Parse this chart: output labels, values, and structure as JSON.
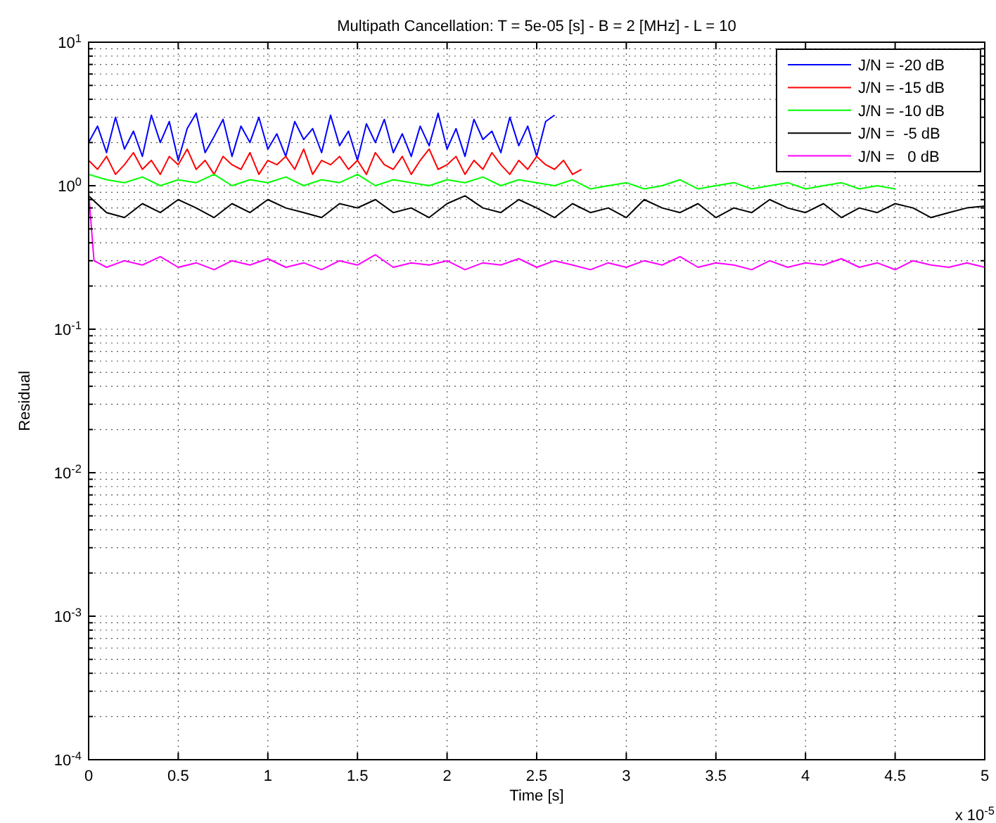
{
  "chart_data": {
    "type": "line",
    "title": "Multipath Cancellation: T = 5e-05 [s] - B = 2 [MHz] - L = 10",
    "xlabel": "Time [s]",
    "ylabel": "Residual",
    "annotations": [
      "x 10$^{-5}$"
    ],
    "xlim": [
      0,
      5
    ],
    "xticks": [
      0,
      0.5,
      1,
      1.5,
      2,
      2.5,
      3,
      3.5,
      4,
      4.5,
      5
    ],
    "ylim": [
      0.0001,
      10
    ],
    "log": "y",
    "yticks": [
      {
        "value": 0.0001,
        "label": "10$^{-4}$"
      },
      {
        "value": 0.001,
        "label": "10$^{-3}$"
      },
      {
        "value": 0.01,
        "label": "10$^{-2}$"
      },
      {
        "value": 0.1,
        "label": "10$^{-1}$"
      },
      {
        "value": 1,
        "label": "10$^{0}$"
      },
      {
        "value": 10,
        "label": "10$^{1}$"
      }
    ],
    "grid": true,
    "legend": "top right",
    "line_style": "solid",
    "marker": "none",
    "series": [
      {
        "name": "J/N = -20 dB",
        "color": "#0000ff",
        "x": [
          0,
          0.05,
          0.1,
          0.15,
          0.2,
          0.25,
          0.3,
          0.35,
          0.4,
          0.45,
          0.5,
          0.55,
          0.6,
          0.65,
          0.7,
          0.75,
          0.8,
          0.85,
          0.9,
          0.95,
          1,
          1.05,
          1.1,
          1.15,
          1.2,
          1.25,
          1.3,
          1.35,
          1.4,
          1.45,
          1.5,
          1.55,
          1.6,
          1.65,
          1.7,
          1.75,
          1.8,
          1.85,
          1.9,
          1.95,
          2,
          2.05,
          2.1,
          2.15,
          2.2,
          2.25,
          2.3,
          2.35,
          2.4,
          2.45,
          2.5,
          2.55,
          2.6
        ],
        "values": [
          2.0,
          2.6,
          1.7,
          3.0,
          1.8,
          2.4,
          1.6,
          3.1,
          2.0,
          2.8,
          1.5,
          2.5,
          3.2,
          1.7,
          2.2,
          2.9,
          1.6,
          2.6,
          2.0,
          3.0,
          1.8,
          2.3,
          1.6,
          2.8,
          2.1,
          2.5,
          1.7,
          3.1,
          1.9,
          2.4,
          1.5,
          2.7,
          2.0,
          2.9,
          1.7,
          2.3,
          1.6,
          2.6,
          1.9,
          3.2,
          1.8,
          2.5,
          1.6,
          2.9,
          2.1,
          2.4,
          1.7,
          3.0,
          1.9,
          2.6,
          1.6,
          2.8,
          3.1
        ]
      },
      {
        "name": "J/N = -15 dB",
        "color": "#ff0000",
        "x": [
          0,
          0.05,
          0.1,
          0.15,
          0.2,
          0.25,
          0.3,
          0.35,
          0.4,
          0.45,
          0.5,
          0.55,
          0.6,
          0.65,
          0.7,
          0.75,
          0.8,
          0.85,
          0.9,
          0.95,
          1,
          1.05,
          1.1,
          1.15,
          1.2,
          1.25,
          1.3,
          1.35,
          1.4,
          1.45,
          1.5,
          1.55,
          1.6,
          1.65,
          1.7,
          1.75,
          1.8,
          1.85,
          1.9,
          1.95,
          2,
          2.05,
          2.1,
          2.15,
          2.2,
          2.25,
          2.3,
          2.35,
          2.4,
          2.45,
          2.5,
          2.55,
          2.6,
          2.65,
          2.7,
          2.75
        ],
        "values": [
          1.5,
          1.3,
          1.6,
          1.2,
          1.4,
          1.7,
          1.3,
          1.5,
          1.2,
          1.6,
          1.4,
          1.8,
          1.3,
          1.5,
          1.2,
          1.6,
          1.4,
          1.3,
          1.7,
          1.2,
          1.5,
          1.4,
          1.6,
          1.3,
          1.8,
          1.2,
          1.5,
          1.4,
          1.6,
          1.3,
          1.5,
          1.2,
          1.7,
          1.4,
          1.3,
          1.6,
          1.2,
          1.5,
          1.8,
          1.3,
          1.4,
          1.6,
          1.2,
          1.5,
          1.3,
          1.7,
          1.4,
          1.2,
          1.5,
          1.3,
          1.6,
          1.4,
          1.3,
          1.5,
          1.2,
          1.3
        ]
      },
      {
        "name": "J/N = -10 dB",
        "color": "#00ff00",
        "x": [
          0,
          0.1,
          0.2,
          0.3,
          0.4,
          0.5,
          0.6,
          0.7,
          0.8,
          0.9,
          1,
          1.1,
          1.2,
          1.3,
          1.4,
          1.5,
          1.6,
          1.7,
          1.8,
          1.9,
          2,
          2.1,
          2.2,
          2.3,
          2.4,
          2.5,
          2.6,
          2.7,
          2.8,
          2.9,
          3,
          3.1,
          3.2,
          3.3,
          3.4,
          3.5,
          3.6,
          3.7,
          3.8,
          3.9,
          4,
          4.1,
          4.2,
          4.3,
          4.4,
          4.5
        ],
        "values": [
          1.2,
          1.1,
          1.05,
          1.15,
          1.0,
          1.1,
          1.05,
          1.2,
          1.0,
          1.1,
          1.05,
          1.15,
          1.0,
          1.1,
          1.05,
          1.2,
          1.0,
          1.1,
          1.05,
          1.0,
          1.1,
          1.05,
          1.15,
          1.0,
          1.1,
          1.05,
          1.0,
          1.1,
          0.95,
          1.0,
          1.05,
          0.95,
          1.0,
          1.1,
          0.95,
          1.0,
          1.05,
          0.95,
          1.0,
          1.05,
          0.95,
          1.0,
          1.05,
          0.95,
          1.0,
          0.95
        ]
      },
      {
        "name": "J/N =  -5 dB",
        "color": "#000000",
        "x": [
          0,
          0.1,
          0.2,
          0.3,
          0.4,
          0.5,
          0.6,
          0.7,
          0.8,
          0.9,
          1,
          1.1,
          1.2,
          1.3,
          1.4,
          1.5,
          1.6,
          1.7,
          1.8,
          1.9,
          2,
          2.1,
          2.2,
          2.3,
          2.4,
          2.5,
          2.6,
          2.7,
          2.8,
          2.9,
          3,
          3.1,
          3.2,
          3.3,
          3.4,
          3.5,
          3.6,
          3.7,
          3.8,
          3.9,
          4,
          4.1,
          4.2,
          4.3,
          4.4,
          4.5,
          4.6,
          4.7,
          4.8,
          4.9,
          5
        ],
        "values": [
          0.85,
          0.65,
          0.6,
          0.75,
          0.65,
          0.8,
          0.7,
          0.6,
          0.75,
          0.65,
          0.8,
          0.7,
          0.65,
          0.6,
          0.75,
          0.7,
          0.8,
          0.65,
          0.7,
          0.6,
          0.75,
          0.85,
          0.7,
          0.65,
          0.8,
          0.7,
          0.6,
          0.75,
          0.65,
          0.7,
          0.6,
          0.8,
          0.7,
          0.65,
          0.75,
          0.6,
          0.7,
          0.65,
          0.8,
          0.7,
          0.65,
          0.75,
          0.6,
          0.7,
          0.65,
          0.75,
          0.7,
          0.6,
          0.65,
          0.7,
          0.72
        ]
      },
      {
        "name": "J/N =   0 dB",
        "color": "#ff00ff",
        "x": [
          0,
          0.03,
          0.1,
          0.2,
          0.3,
          0.4,
          0.5,
          0.6,
          0.7,
          0.8,
          0.9,
          1,
          1.1,
          1.2,
          1.3,
          1.4,
          1.5,
          1.6,
          1.7,
          1.8,
          1.9,
          2,
          2.1,
          2.2,
          2.3,
          2.4,
          2.5,
          2.6,
          2.7,
          2.8,
          2.9,
          3,
          3.1,
          3.2,
          3.3,
          3.4,
          3.5,
          3.6,
          3.7,
          3.8,
          3.9,
          4,
          4.1,
          4.2,
          4.3,
          4.4,
          4.5,
          4.6,
          4.7,
          4.8,
          4.9,
          5
        ],
        "values": [
          0.9,
          0.3,
          0.27,
          0.3,
          0.28,
          0.32,
          0.27,
          0.29,
          0.26,
          0.3,
          0.28,
          0.31,
          0.27,
          0.29,
          0.26,
          0.3,
          0.28,
          0.33,
          0.27,
          0.29,
          0.28,
          0.3,
          0.26,
          0.29,
          0.28,
          0.31,
          0.27,
          0.3,
          0.28,
          0.26,
          0.29,
          0.27,
          0.3,
          0.28,
          0.32,
          0.27,
          0.29,
          0.28,
          0.26,
          0.3,
          0.27,
          0.29,
          0.28,
          0.31,
          0.27,
          0.29,
          0.26,
          0.3,
          0.28,
          0.27,
          0.29,
          0.27
        ]
      }
    ]
  }
}
